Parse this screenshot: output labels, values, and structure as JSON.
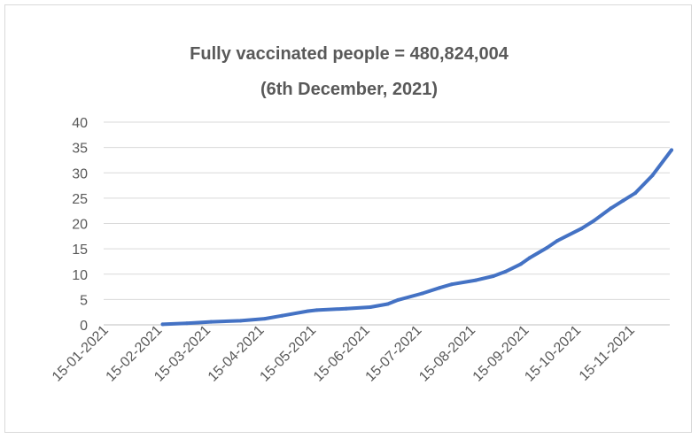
{
  "chart_data": {
    "type": "line",
    "title": "Fully vaccinated people = 480,824,004",
    "subtitle": "(6th December, 2021)",
    "xlabel": "",
    "ylabel": "",
    "ylim": [
      0,
      40
    ],
    "yticks": [
      "0",
      "5",
      "10",
      "15",
      "20",
      "25",
      "30",
      "35",
      "40"
    ],
    "xticks": [
      "15-01-2021",
      "15-02-2021",
      "15-03-2021",
      "15-04-2021",
      "15-05-2021",
      "15-06-2021",
      "15-07-2021",
      "15-08-2021",
      "15-09-2021",
      "15-10-2021",
      "15-11-2021"
    ],
    "grid": true,
    "legend": "none",
    "line_color": "#4472c4",
    "series": [
      {
        "x": [
          "2021-02-15",
          "2021-03-01",
          "2021-03-15",
          "2021-04-01",
          "2021-04-15",
          "2021-04-25",
          "2021-05-10",
          "2021-05-15",
          "2021-06-01",
          "2021-06-15",
          "2021-06-25",
          "2021-07-01",
          "2021-07-15",
          "2021-07-25",
          "2021-08-01",
          "2021-08-15",
          "2021-08-25",
          "2021-09-01",
          "2021-09-10",
          "2021-09-15",
          "2021-09-25",
          "2021-10-01",
          "2021-10-15",
          "2021-10-22",
          "2021-11-01",
          "2021-11-08",
          "2021-11-15",
          "2021-11-25",
          "2021-12-06"
        ],
        "values": [
          0.1,
          0.3,
          0.6,
          0.8,
          1.2,
          1.8,
          2.7,
          2.9,
          3.2,
          3.5,
          4.1,
          4.9,
          6.2,
          7.3,
          8.0,
          8.8,
          9.6,
          10.5,
          12.0,
          13.2,
          15.2,
          16.6,
          19.0,
          20.5,
          23.0,
          24.5,
          26.0,
          29.5,
          34.5
        ]
      }
    ]
  }
}
